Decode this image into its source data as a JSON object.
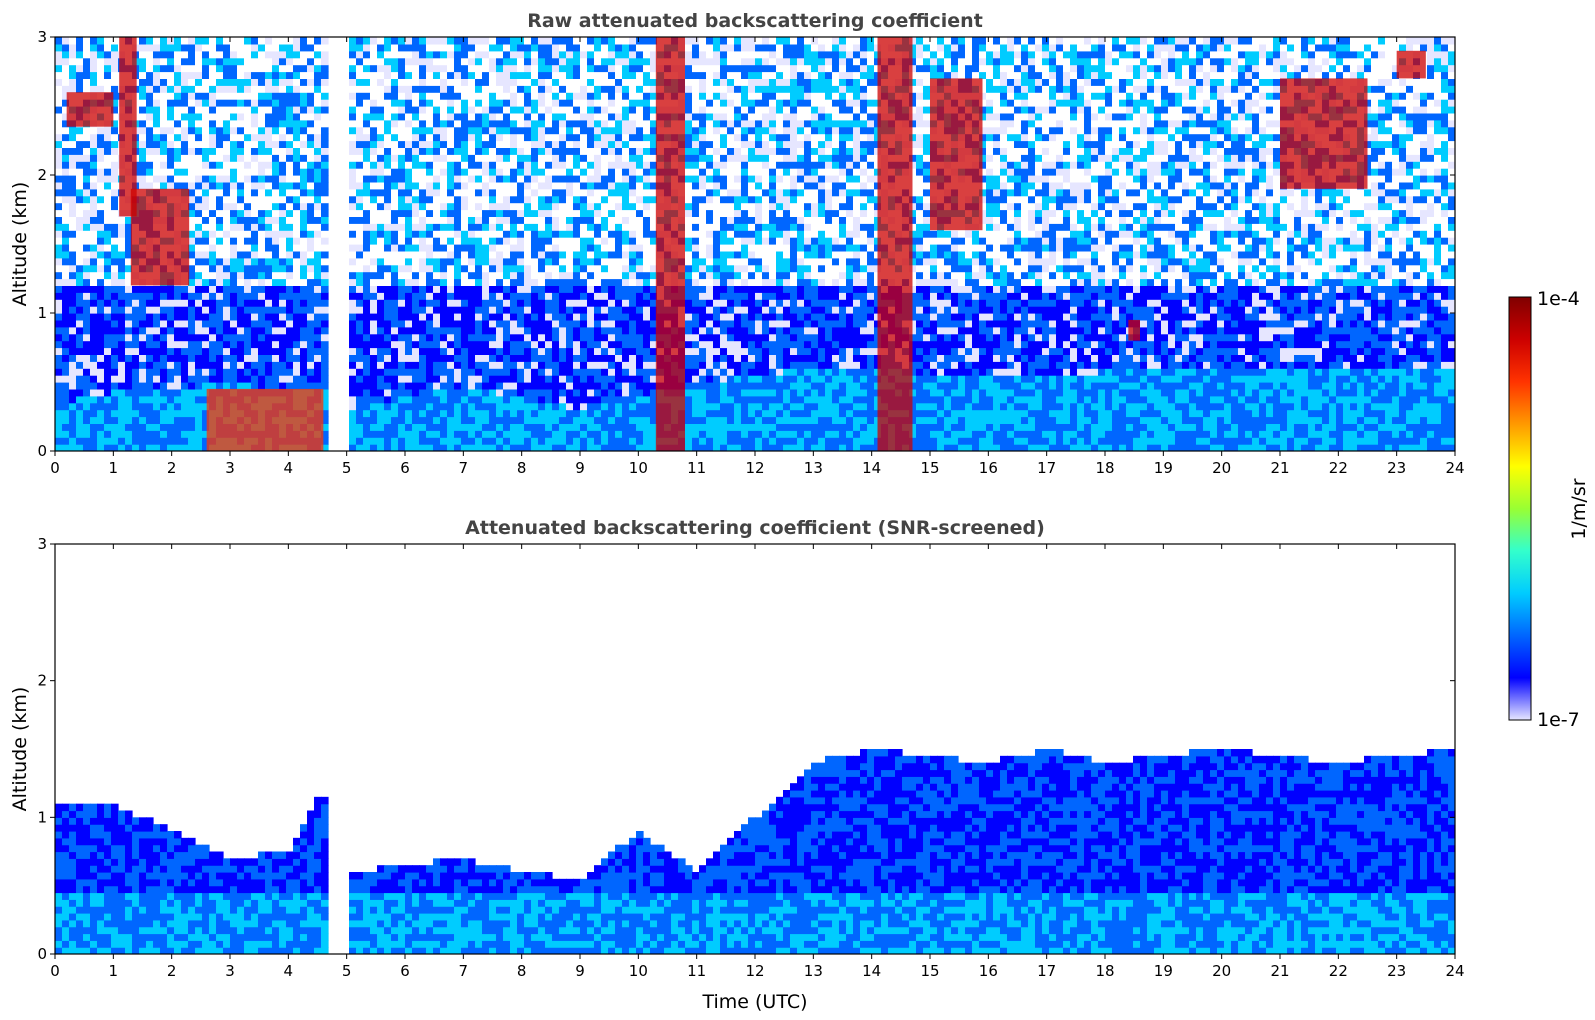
{
  "colors": {
    "background": "#ffffff",
    "title": "#444444",
    "axis": "#000000",
    "colormap": [
      "#ffffff",
      "#e6e6ff",
      "#0000ff",
      "#0066ff",
      "#00ccff",
      "#33ffcc",
      "#99ff33",
      "#ffff00",
      "#ff9900",
      "#ff3300",
      "#cc0000",
      "#800000",
      "#000000"
    ]
  },
  "chart_data": [
    {
      "type": "heatmap",
      "title": "Raw attenuated backscattering coefficient",
      "xlabel": "",
      "ylabel": "Altitude (km)",
      "xlim": [
        0,
        24
      ],
      "ylim": [
        0,
        3
      ],
      "xticks": [
        "0",
        "1",
        "2",
        "3",
        "4",
        "5",
        "6",
        "7",
        "8",
        "9",
        "10",
        "11",
        "12",
        "13",
        "14",
        "15",
        "16",
        "17",
        "18",
        "19",
        "20",
        "21",
        "22",
        "23",
        "24"
      ],
      "yticks": [
        "0",
        "1",
        "2",
        "3"
      ],
      "data_gap": [
        4.65,
        5.05
      ],
      "boundary_layer_top_km": [
        [
          0,
          0.35
        ],
        [
          1.3,
          0.45
        ],
        [
          2,
          0.45
        ],
        [
          3,
          0.5
        ],
        [
          4,
          0.45
        ],
        [
          4.6,
          0.45
        ],
        [
          5.05,
          0.3
        ],
        [
          6,
          0.4
        ],
        [
          7,
          0.45
        ],
        [
          8,
          0.4
        ],
        [
          9,
          0.3
        ],
        [
          10,
          0.4
        ],
        [
          11,
          0.5
        ],
        [
          13,
          0.6
        ],
        [
          16,
          0.55
        ],
        [
          20,
          0.6
        ],
        [
          24,
          0.6
        ]
      ],
      "cloud_features": [
        {
          "x": [
            0.2,
            1.0
          ],
          "y": [
            2.35,
            2.6
          ],
          "level": "high"
        },
        {
          "x": [
            1.1,
            1.4
          ],
          "y": [
            1.7,
            3.0
          ],
          "level": "high"
        },
        {
          "x": [
            1.3,
            2.3
          ],
          "y": [
            1.2,
            1.9
          ],
          "level": "high"
        },
        {
          "x": [
            2.6,
            4.6
          ],
          "y": [
            0.0,
            0.45
          ],
          "level": "medium"
        },
        {
          "x": [
            10.3,
            10.8
          ],
          "y": [
            0.0,
            3.0
          ],
          "level": "high"
        },
        {
          "x": [
            14.1,
            14.7
          ],
          "y": [
            0.0,
            3.0
          ],
          "level": "high"
        },
        {
          "x": [
            15.0,
            15.9
          ],
          "y": [
            1.6,
            2.7
          ],
          "level": "high"
        },
        {
          "x": [
            18.4,
            18.6
          ],
          "y": [
            0.8,
            0.95
          ],
          "level": "high"
        },
        {
          "x": [
            21.0,
            22.5
          ],
          "y": [
            1.9,
            2.7
          ],
          "level": "high"
        },
        {
          "x": [
            23.0,
            23.5
          ],
          "y": [
            2.7,
            2.9
          ],
          "level": "high"
        }
      ]
    },
    {
      "type": "heatmap",
      "title": "Attenuated backscattering coefficient (SNR-screened)",
      "xlabel": "Time (UTC)",
      "ylabel": "Altitude (km)",
      "xlim": [
        0,
        24
      ],
      "ylim": [
        0,
        3
      ],
      "xticks": [
        "0",
        "1",
        "2",
        "3",
        "4",
        "5",
        "6",
        "7",
        "8",
        "9",
        "10",
        "11",
        "12",
        "13",
        "14",
        "15",
        "16",
        "17",
        "18",
        "19",
        "20",
        "21",
        "22",
        "23",
        "24"
      ],
      "yticks": [
        "0",
        "1",
        "2",
        "3"
      ],
      "data_gap": [
        4.65,
        5.05
      ],
      "screened_top_km": [
        [
          0,
          1.1
        ],
        [
          1,
          1.1
        ],
        [
          2,
          0.9
        ],
        [
          3,
          0.7
        ],
        [
          4,
          0.75
        ],
        [
          4.6,
          1.2
        ],
        [
          5.05,
          0.6
        ],
        [
          6,
          0.65
        ],
        [
          7,
          0.7
        ],
        [
          8,
          0.6
        ],
        [
          9,
          0.55
        ],
        [
          10,
          0.9
        ],
        [
          11,
          0.6
        ],
        [
          12,
          1.0
        ],
        [
          13,
          1.4
        ],
        [
          14,
          1.5
        ],
        [
          16,
          1.4
        ],
        [
          17,
          1.5
        ],
        [
          18,
          1.4
        ],
        [
          20,
          1.5
        ],
        [
          22,
          1.4
        ],
        [
          24,
          1.5
        ]
      ]
    }
  ],
  "colorbar": {
    "label": "1/m/sr",
    "max_label": "1e-4",
    "min_label": "1e-7",
    "range": [
      "1e-7",
      "1e-4"
    ]
  }
}
